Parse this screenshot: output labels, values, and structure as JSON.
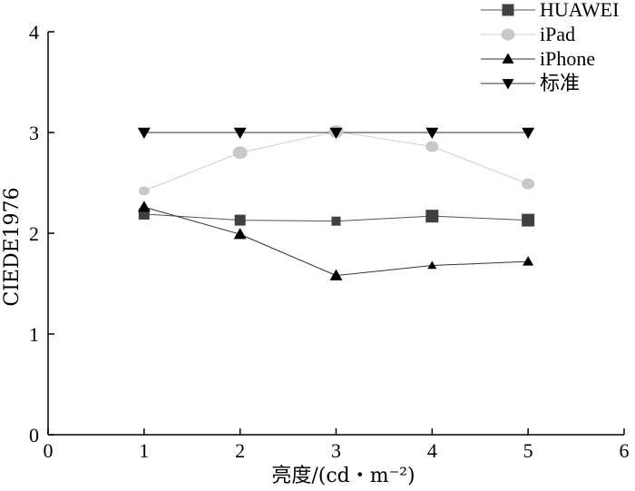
{
  "chart_data": {
    "type": "line",
    "xlabel": "亮度/(cd・m⁻²)",
    "ylabel": "CIEDE1976",
    "xlim": [
      0,
      6
    ],
    "ylim": [
      0,
      4
    ],
    "xticks": [
      0,
      1,
      2,
      3,
      4,
      5,
      6
    ],
    "yticks": [
      0,
      1,
      2,
      3,
      4
    ],
    "x": [
      1,
      2,
      3,
      4,
      5
    ],
    "legend_position": "top-right",
    "grid": false,
    "series": [
      {
        "name": "HUAWEI",
        "marker": "square",
        "color": "#404040",
        "line_color": "#555555",
        "values": [
          2.19,
          2.13,
          2.12,
          2.17,
          2.13
        ],
        "marker_sizes": [
          12,
          12,
          10,
          14,
          14
        ]
      },
      {
        "name": "iPad",
        "marker": "circle",
        "color": "#c8c8c8",
        "line_color": "#d0d0d0",
        "values": [
          2.42,
          2.8,
          3.01,
          2.86,
          2.49
        ],
        "marker_sizes": [
          10,
          14,
          14,
          12,
          12
        ]
      },
      {
        "name": "iPhone",
        "marker": "triangle-up",
        "color": "#000000",
        "line_color": "#333333",
        "values": [
          2.26,
          1.99,
          1.58,
          1.68,
          1.72
        ],
        "marker_sizes": [
          14,
          14,
          14,
          10,
          12
        ]
      },
      {
        "name": "标准",
        "marker": "triangle-down",
        "color": "#000000",
        "line_color": "#333333",
        "values": [
          3.0,
          3.0,
          3.0,
          3.0,
          3.0
        ],
        "marker_sizes": [
          14,
          14,
          14,
          14,
          14
        ]
      }
    ]
  }
}
